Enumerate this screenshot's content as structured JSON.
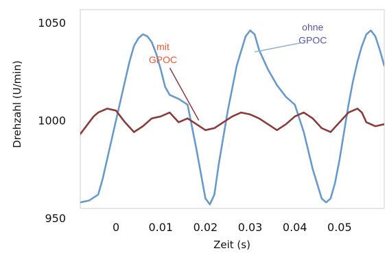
{
  "chart_data": {
    "type": "line",
    "xlabel": "Zeit (s)",
    "ylabel": "Drehzahl (U/min)",
    "xlim": [
      -0.008,
      0.06
    ],
    "ylim": [
      950,
      1058
    ],
    "x_ticks": [
      {
        "value": 0,
        "label": "0"
      },
      {
        "value": 0.01,
        "label": "0.01"
      },
      {
        "value": 0.02,
        "label": "0.02"
      },
      {
        "value": 0.03,
        "label": "0.03"
      },
      {
        "value": 0.04,
        "label": "0.04"
      },
      {
        "value": 0.05,
        "label": "0.05"
      }
    ],
    "y_ticks": [
      {
        "value": 950,
        "label": "950"
      },
      {
        "value": 1000,
        "label": "1000"
      },
      {
        "value": 1050,
        "label": "1050"
      }
    ],
    "series": [
      {
        "name": "ohne GPOC",
        "color": "#6699cc",
        "x": [
          -0.008,
          -0.006,
          -0.004,
          -0.003,
          -0.002,
          -0.001,
          0,
          0.001,
          0.002,
          0.003,
          0.004,
          0.005,
          0.006,
          0.007,
          0.008,
          0.009,
          0.01,
          0.011,
          0.012,
          0.014,
          0.016,
          0.018,
          0.02,
          0.021,
          0.022,
          0.023,
          0.025,
          0.027,
          0.029,
          0.03,
          0.031,
          0.032,
          0.034,
          0.036,
          0.038,
          0.04,
          0.042,
          0.044,
          0.046,
          0.047,
          0.048,
          0.049,
          0.05,
          0.051,
          0.052,
          0.053,
          0.054,
          0.055,
          0.056,
          0.057,
          0.058,
          0.059,
          0.06
        ],
        "y": [
          958,
          959,
          962,
          970,
          980,
          990,
          1000,
          1010,
          1020,
          1030,
          1038,
          1042,
          1044,
          1043,
          1040,
          1034,
          1026,
          1017,
          1013,
          1011,
          1008,
          985,
          960,
          957,
          962,
          978,
          1005,
          1028,
          1043,
          1046,
          1044,
          1036,
          1026,
          1018,
          1012,
          1008,
          994,
          975,
          960,
          958,
          960,
          968,
          980,
          994,
          1008,
          1020,
          1030,
          1038,
          1044,
          1046,
          1043,
          1036,
          1028
        ]
      },
      {
        "name": "mit GPOC",
        "color": "#8b3a3a",
        "x": [
          -0.008,
          -0.007,
          -0.006,
          -0.005,
          -0.004,
          -0.002,
          0,
          0.002,
          0.004,
          0.006,
          0.008,
          0.01,
          0.012,
          0.014,
          0.016,
          0.018,
          0.02,
          0.022,
          0.024,
          0.026,
          0.028,
          0.03,
          0.032,
          0.034,
          0.036,
          0.038,
          0.04,
          0.042,
          0.044,
          0.046,
          0.048,
          0.05,
          0.052,
          0.054,
          0.055,
          0.056,
          0.058,
          0.06
        ],
        "y": [
          993,
          996,
          999,
          1002,
          1004,
          1006,
          1005,
          999,
          994,
          997,
          1001,
          1002,
          1004,
          999,
          1001,
          998,
          995,
          996,
          999,
          1002,
          1004,
          1003,
          1001,
          998,
          995,
          998,
          1002,
          1004,
          1001,
          996,
          994,
          999,
          1004,
          1006,
          1004,
          999,
          997,
          998
        ]
      }
    ],
    "annotations": [
      {
        "lines": [
          "mit",
          "GPOC"
        ],
        "color": "#ee5533",
        "series": "mit GPOC",
        "anchor": [
          0.0105,
          1031
        ],
        "target": [
          0.0185,
          1000
        ]
      },
      {
        "lines": [
          "ohne",
          "GPOC"
        ],
        "color": "#5555aa",
        "series": "ohne GPOC",
        "anchor": [
          0.044,
          1041
        ],
        "target": [
          0.031,
          1035
        ]
      }
    ]
  }
}
